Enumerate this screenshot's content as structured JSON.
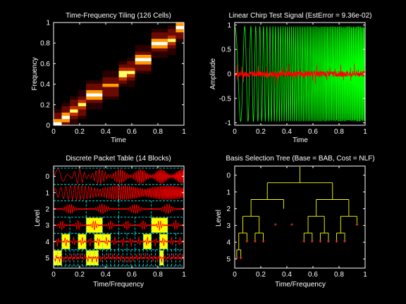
{
  "figure": {
    "background": "#000000",
    "axis_color": "#ffffff"
  },
  "chart_data": [
    {
      "id": "tiling",
      "type": "heatmap",
      "title": "Time-Frequency Tiling (126 Cells)",
      "xlabel": "Time",
      "ylabel": "Frequency",
      "xlim": [
        0,
        1
      ],
      "ylim": [
        0,
        1
      ],
      "xticks": [
        "0",
        "0.2",
        "0.4",
        "0.6",
        "0.8",
        "1"
      ],
      "yticks": [
        "0",
        "0.2",
        "0.4",
        "0.6",
        "0.8",
        "1"
      ],
      "colormap": "hot",
      "colors": {
        "dark": "#2a0000",
        "low": "#6a0a00",
        "mid": "#c03000",
        "high": "#ff9a00",
        "peak": "#ffff66",
        "white": "#ffffff"
      },
      "columns": [
        {
          "x": [
            0.0,
            0.0625
          ],
          "center": 0.02,
          "peak_level": 5
        },
        {
          "x": [
            0.0625,
            0.125
          ],
          "center": 0.09,
          "peak_level": 5
        },
        {
          "x": [
            0.125,
            0.1875
          ],
          "center": 0.15,
          "peak_level": 4
        },
        {
          "x": [
            0.1875,
            0.25
          ],
          "center": 0.2,
          "peak_level": 4
        },
        {
          "x": [
            0.25,
            0.375
          ],
          "center": 0.3,
          "peak_level": 5
        },
        {
          "x": [
            0.375,
            0.5
          ],
          "center": 0.39,
          "peak_level": 3
        },
        {
          "x": [
            0.5,
            0.5625
          ],
          "center": 0.5,
          "peak_level": 4
        },
        {
          "x": [
            0.5625,
            0.625
          ],
          "center": 0.52,
          "peak_level": 4
        },
        {
          "x": [
            0.625,
            0.75
          ],
          "center": 0.64,
          "peak_level": 5
        },
        {
          "x": [
            0.75,
            0.875
          ],
          "center": 0.8,
          "peak_level": 5
        },
        {
          "x": [
            0.875,
            0.9375
          ],
          "center": 0.84,
          "peak_level": 4
        },
        {
          "x": [
            0.9375,
            1.0
          ],
          "center": 0.95,
          "peak_level": 5
        }
      ]
    },
    {
      "id": "signal",
      "type": "line",
      "title": "Linear Chirp Test Signal (EstError = 9.36e-02)",
      "xlabel": "Time",
      "ylabel": "Amplitude",
      "xlim": [
        0,
        1
      ],
      "ylim": [
        -1.05,
        1.05
      ],
      "xticks": [
        "0",
        "0.2",
        "0.4",
        "0.6",
        "0.8",
        "1"
      ],
      "yticks": [
        "-1",
        "-0.5",
        "0",
        "0.5",
        "1"
      ],
      "series": [
        {
          "color": "#00ff00",
          "kind": "chirp",
          "amplitude": 1,
          "f0": 8,
          "f1": 140
        },
        {
          "color": "#ff0000",
          "kind": "residual",
          "amplitude": 0.12
        }
      ]
    },
    {
      "id": "packets",
      "type": "table",
      "title": "Discrete Packet Table (14 Blocks)",
      "xlabel": "Time/Frequency",
      "ylabel": "Level",
      "xlim": [
        0,
        1
      ],
      "xticks": [
        "0",
        "0.2",
        "0.4",
        "0.6",
        "0.8",
        "1"
      ],
      "levels": [
        "0",
        "1",
        "2",
        "3",
        "4",
        "5"
      ],
      "grid_color": "#00ffff",
      "block_color": "#ffff00",
      "trace_color": "#ff0000",
      "selected_blocks": [
        {
          "level": 3,
          "index": 2
        },
        {
          "level": 3,
          "index": 6
        },
        {
          "level": 4,
          "index": 1
        },
        {
          "level": 4,
          "index": 3
        },
        {
          "level": 4,
          "index": 5
        },
        {
          "level": 4,
          "index": 6
        },
        {
          "level": 4,
          "index": 11
        },
        {
          "level": 4,
          "index": 13
        },
        {
          "level": 5,
          "index": 0
        },
        {
          "level": 5,
          "index": 1
        },
        {
          "level": 5,
          "index": 8
        },
        {
          "level": 5,
          "index": 9
        },
        {
          "level": 5,
          "index": 10
        },
        {
          "level": 5,
          "index": 26
        }
      ]
    },
    {
      "id": "tree",
      "type": "tree",
      "title": "Basis Selection Tree (Base = BAB, Cost = NLF)",
      "xlabel": "Time/Frequency",
      "ylabel": "Level",
      "xlim": [
        0,
        1
      ],
      "xticks": [
        "0",
        "0.2",
        "0.4",
        "0.6",
        "0.8",
        "1"
      ],
      "levels": [
        "0",
        "1",
        "2",
        "3",
        "4",
        "5"
      ],
      "line_color": "#ffff00",
      "leaf_color": "#ff3030",
      "splits": [
        {
          "level": 0,
          "index": 0
        },
        {
          "level": 1,
          "index": 0
        },
        {
          "level": 1,
          "index": 1
        },
        {
          "level": 2,
          "index": 0
        },
        {
          "level": 2,
          "index": 2
        },
        {
          "level": 2,
          "index": 3
        },
        {
          "level": 3,
          "index": 0
        },
        {
          "level": 3,
          "index": 1
        },
        {
          "level": 3,
          "index": 4
        },
        {
          "level": 3,
          "index": 5
        },
        {
          "level": 3,
          "index": 6
        },
        {
          "level": 4,
          "index": 0
        }
      ],
      "leaves": [
        {
          "level": 5,
          "index": 0
        },
        {
          "level": 5,
          "index": 1
        },
        {
          "level": 4,
          "index": 1
        },
        {
          "level": 4,
          "index": 2
        },
        {
          "level": 4,
          "index": 3
        },
        {
          "level": 3,
          "index": 2
        },
        {
          "level": 3,
          "index": 3
        },
        {
          "level": 4,
          "index": 8
        },
        {
          "level": 4,
          "index": 9
        },
        {
          "level": 4,
          "index": 10
        },
        {
          "level": 4,
          "index": 11
        },
        {
          "level": 4,
          "index": 12
        },
        {
          "level": 4,
          "index": 13
        },
        {
          "level": 3,
          "index": 7
        }
      ]
    }
  ]
}
